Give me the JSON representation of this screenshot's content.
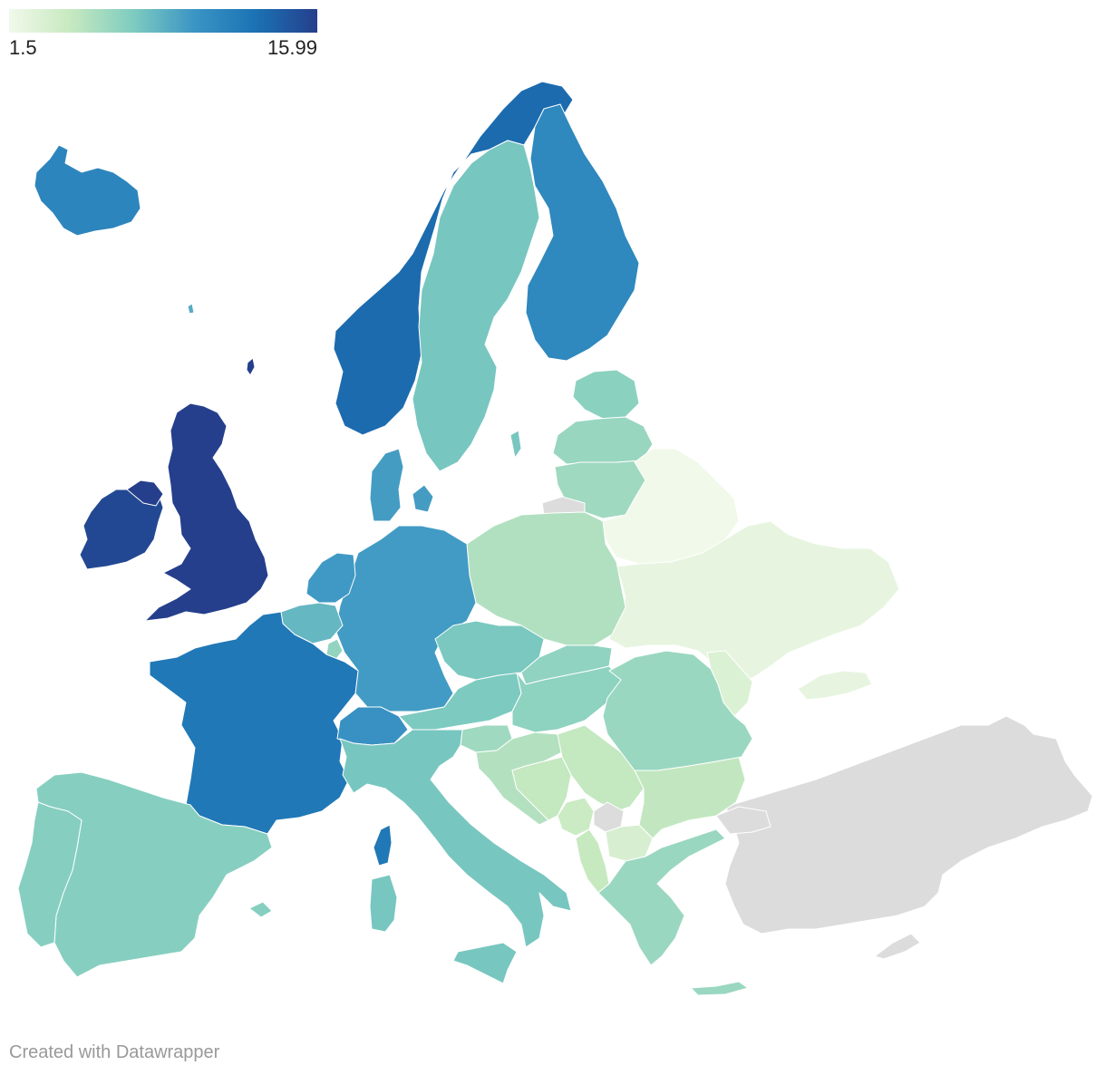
{
  "legend": {
    "min_label": "1.5",
    "max_label": "15.99",
    "min_value": 1.5,
    "max_value": 15.99,
    "color_stops": [
      "#f1f9ea",
      "#c7e9c0",
      "#7fccc0",
      "#3b95c4",
      "#1b72b4",
      "#253f8c"
    ]
  },
  "credit": "Created with Datawrapper",
  "no_data_color": "#dcdcdc",
  "regions": [
    {
      "id": "united-kingdom",
      "value": 15.99
    },
    {
      "id": "ireland",
      "value": 15.5
    },
    {
      "id": "iceland",
      "value": 11.5
    },
    {
      "id": "norway",
      "value": 13.5
    },
    {
      "id": "sweden",
      "value": 7.6
    },
    {
      "id": "finland",
      "value": 11.3
    },
    {
      "id": "denmark",
      "value": 9.8
    },
    {
      "id": "estonia",
      "value": 6.8
    },
    {
      "id": "latvia",
      "value": 6.3
    },
    {
      "id": "lithuania",
      "value": 6.0
    },
    {
      "id": "belarus",
      "value": 1.5
    },
    {
      "id": "ukraine",
      "value": 2.2
    },
    {
      "id": "moldova",
      "value": 3.0
    },
    {
      "id": "poland",
      "value": 5.3
    },
    {
      "id": "germany",
      "value": 9.9
    },
    {
      "id": "netherlands",
      "value": 10.0
    },
    {
      "id": "belgium",
      "value": 8.4
    },
    {
      "id": "luxembourg",
      "value": 6.5
    },
    {
      "id": "france",
      "value": 12.6
    },
    {
      "id": "switzerland",
      "value": 10.5
    },
    {
      "id": "austria",
      "value": 7.4
    },
    {
      "id": "czechia",
      "value": 7.5
    },
    {
      "id": "slovakia",
      "value": 6.6
    },
    {
      "id": "hungary",
      "value": 6.7
    },
    {
      "id": "slovenia",
      "value": 6.0
    },
    {
      "id": "croatia",
      "value": 5.2
    },
    {
      "id": "bosnia-and-herzegovina",
      "value": 4.5
    },
    {
      "id": "serbia",
      "value": 4.5
    },
    {
      "id": "montenegro",
      "value": 4.1
    },
    {
      "id": "kosovo",
      "value": null
    },
    {
      "id": "north-macedonia",
      "value": 3.3
    },
    {
      "id": "albania",
      "value": 4.4
    },
    {
      "id": "greece",
      "value": 6.2
    },
    {
      "id": "bulgaria",
      "value": 4.6
    },
    {
      "id": "romania",
      "value": 6.2
    },
    {
      "id": "italy",
      "value": 7.6
    },
    {
      "id": "corsica",
      "value": 12.6
    },
    {
      "id": "sardinia",
      "value": 7.6
    },
    {
      "id": "sicily",
      "value": 7.6
    },
    {
      "id": "spain",
      "value": 7.0
    },
    {
      "id": "portugal",
      "value": 7.0
    },
    {
      "id": "balearic-islands",
      "value": 7.0
    },
    {
      "id": "crete",
      "value": 6.2
    },
    {
      "id": "gotland",
      "value": 7.6
    },
    {
      "id": "faroe-islands",
      "value": 9.0
    },
    {
      "id": "shetland",
      "value": 15.99
    },
    {
      "id": "turkey",
      "value": null
    },
    {
      "id": "cyprus",
      "value": null
    },
    {
      "id": "kaliningrad",
      "value": null
    }
  ]
}
